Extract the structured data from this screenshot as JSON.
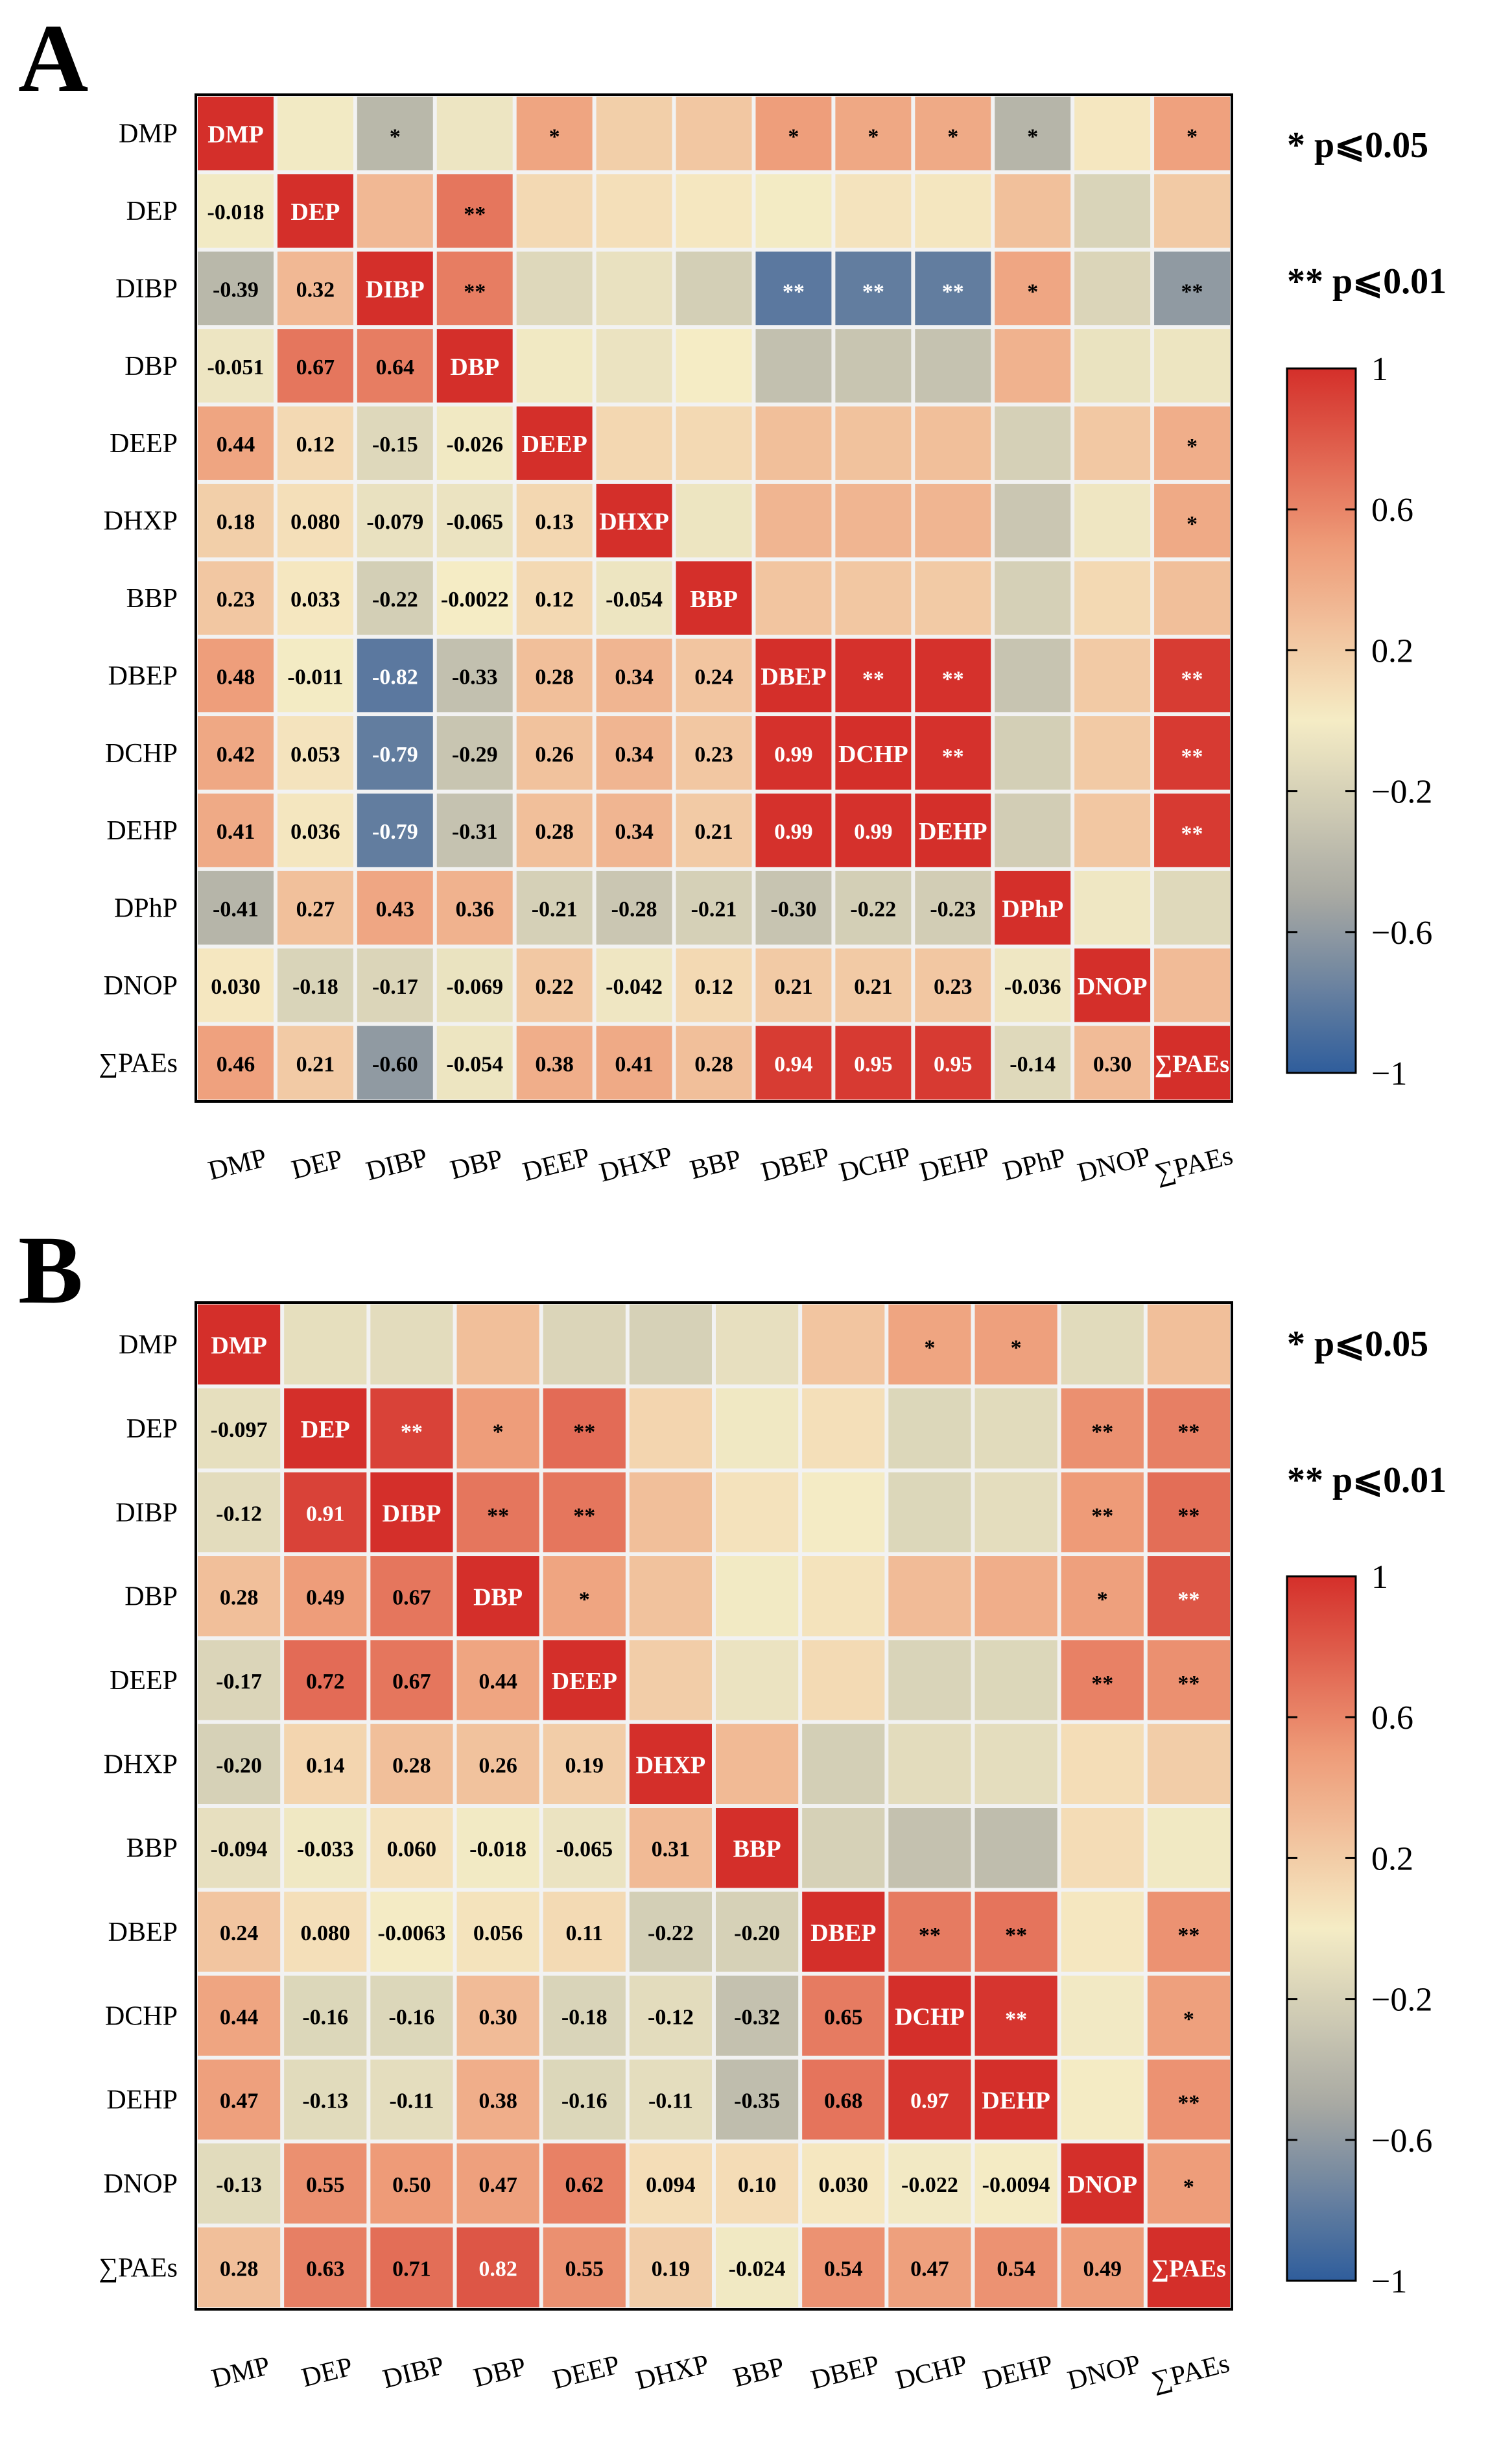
{
  "panels": [
    {
      "letter": "A",
      "chart_data": {
        "type": "heatmap",
        "labels": [
          "DMP",
          "DEP",
          "DIBP",
          "DBP",
          "DEEP",
          "DHXP",
          "BBP",
          "DBEP",
          "DCHP",
          "DEHP",
          "DPhP",
          "DNOP",
          "∑PAEs"
        ],
        "lower": [
          [],
          [
            -0.018
          ],
          [
            -0.39,
            0.32
          ],
          [
            -0.051,
            0.67,
            0.64
          ],
          [
            0.44,
            0.12,
            -0.15,
            -0.026
          ],
          [
            0.18,
            0.08,
            -0.079,
            -0.065,
            0.13
          ],
          [
            0.23,
            0.033,
            -0.22,
            -0.0022,
            0.12,
            -0.054
          ],
          [
            0.48,
            -0.011,
            -0.82,
            -0.33,
            0.28,
            0.34,
            0.24
          ],
          [
            0.42,
            0.053,
            -0.79,
            -0.29,
            0.26,
            0.34,
            0.23,
            0.99
          ],
          [
            0.41,
            0.036,
            -0.79,
            -0.31,
            0.28,
            0.34,
            0.21,
            0.99,
            0.99
          ],
          [
            -0.41,
            0.27,
            0.43,
            0.36,
            -0.21,
            -0.28,
            -0.21,
            -0.3,
            -0.22,
            -0.23
          ],
          [
            0.03,
            -0.18,
            -0.17,
            -0.069,
            0.22,
            -0.042,
            0.12,
            0.21,
            0.21,
            0.23,
            -0.036
          ],
          [
            0.46,
            0.21,
            -0.6,
            -0.054,
            0.38,
            0.41,
            0.28,
            0.94,
            0.95,
            0.95,
            -0.14,
            0.3
          ]
        ],
        "lower_text": [
          [],
          [
            "-0.018"
          ],
          [
            "-0.39",
            "0.32"
          ],
          [
            "-0.051",
            "0.67",
            "0.64"
          ],
          [
            "0.44",
            "0.12",
            "-0.15",
            "-0.026"
          ],
          [
            "0.18",
            "0.080",
            "-0.079",
            "-0.065",
            "0.13"
          ],
          [
            "0.23",
            "0.033",
            "-0.22",
            "-0.0022",
            "0.12",
            "-0.054"
          ],
          [
            "0.48",
            "-0.011",
            "-0.82",
            "-0.33",
            "0.28",
            "0.34",
            "0.24"
          ],
          [
            "0.42",
            "0.053",
            "-0.79",
            "-0.29",
            "0.26",
            "0.34",
            "0.23",
            "0.99"
          ],
          [
            "0.41",
            "0.036",
            "-0.79",
            "-0.31",
            "0.28",
            "0.34",
            "0.21",
            "0.99",
            "0.99"
          ],
          [
            "-0.41",
            "0.27",
            "0.43",
            "0.36",
            "-0.21",
            "-0.28",
            "-0.21",
            "-0.30",
            "-0.22",
            "-0.23"
          ],
          [
            "0.030",
            "-0.18",
            "-0.17",
            "-0.069",
            "0.22",
            "-0.042",
            "0.12",
            "0.21",
            "0.21",
            "0.23",
            "-0.036"
          ],
          [
            "0.46",
            "0.21",
            "-0.60",
            "-0.054",
            "0.38",
            "0.41",
            "0.28",
            "0.94",
            "0.95",
            "0.95",
            "-0.14",
            "0.30"
          ]
        ],
        "significance": [
          [
            "",
            "",
            "*",
            "",
            "*",
            "",
            "",
            "*",
            "*",
            "*",
            "*",
            "",
            "*"
          ],
          [
            "",
            "",
            "",
            "**",
            "",
            "",
            "",
            "",
            "",
            "",
            "",
            "",
            ""
          ],
          [
            "",
            "",
            "",
            "**",
            "",
            "",
            "",
            "**",
            "**",
            "**",
            "*",
            "",
            "**"
          ],
          [
            "",
            "",
            "",
            "",
            "",
            "",
            "",
            "",
            "",
            "",
            "",
            "",
            ""
          ],
          [
            "",
            "",
            "",
            "",
            "",
            "",
            "",
            "",
            "",
            "",
            "",
            "",
            "*"
          ],
          [
            "",
            "",
            "",
            "",
            "",
            "",
            "",
            "",
            "",
            "",
            "",
            "",
            "*"
          ],
          [
            "",
            "",
            "",
            "",
            "",
            "",
            "",
            "",
            "",
            "",
            "",
            "",
            ""
          ],
          [
            "",
            "",
            "",
            "",
            "",
            "",
            "",
            "",
            "**",
            "**",
            "",
            "",
            "**"
          ],
          [
            "",
            "",
            "",
            "",
            "",
            "",
            "",
            "",
            "",
            "**",
            "",
            "",
            "**"
          ],
          [
            "",
            "",
            "",
            "",
            "",
            "",
            "",
            "",
            "",
            "",
            "",
            "",
            "**"
          ],
          [
            "",
            "",
            "",
            "",
            "",
            "",
            "",
            "",
            "",
            "",
            "",
            "",
            ""
          ],
          [
            "",
            "",
            "",
            "",
            "",
            "",
            "",
            "",
            "",
            "",
            "",
            "",
            ""
          ],
          [
            "",
            "",
            "",
            "",
            "",
            "",
            "",
            "",
            "",
            "",
            "",
            "",
            ""
          ]
        ],
        "legend_ticks": [
          "1",
          "0.6",
          "0.2",
          "−0.2",
          "−0.6",
          "−1"
        ],
        "legend_tick_values": [
          1,
          0.6,
          0.2,
          -0.2,
          -0.6,
          -1
        ],
        "sig_labels": [
          "* p⩽0.05",
          "** p⩽0.01"
        ],
        "color_range": [
          -1,
          1
        ]
      }
    },
    {
      "letter": "B",
      "chart_data": {
        "type": "heatmap",
        "labels": [
          "DMP",
          "DEP",
          "DIBP",
          "DBP",
          "DEEP",
          "DHXP",
          "BBP",
          "DBEP",
          "DCHP",
          "DEHP",
          "DNOP",
          "∑PAEs"
        ],
        "lower": [
          [],
          [
            -0.097
          ],
          [
            -0.12,
            0.91
          ],
          [
            0.28,
            0.49,
            0.67
          ],
          [
            -0.17,
            0.72,
            0.67,
            0.44
          ],
          [
            -0.2,
            0.14,
            0.28,
            0.26,
            0.19
          ],
          [
            -0.094,
            -0.033,
            0.06,
            -0.018,
            -0.065,
            0.31
          ],
          [
            0.24,
            0.08,
            -0.0063,
            0.056,
            0.11,
            -0.22,
            -0.2
          ],
          [
            0.44,
            -0.16,
            -0.16,
            0.3,
            -0.18,
            -0.12,
            -0.32,
            0.65
          ],
          [
            0.47,
            -0.13,
            -0.11,
            0.38,
            -0.16,
            -0.11,
            -0.35,
            0.68,
            0.97
          ],
          [
            -0.13,
            0.55,
            0.5,
            0.47,
            0.62,
            0.094,
            0.1,
            0.03,
            -0.022,
            -0.0094
          ],
          [
            0.28,
            0.63,
            0.71,
            0.82,
            0.55,
            0.19,
            -0.024,
            0.54,
            0.47,
            0.54,
            0.49
          ]
        ],
        "lower_text": [
          [],
          [
            "-0.097"
          ],
          [
            "-0.12",
            "0.91"
          ],
          [
            "0.28",
            "0.49",
            "0.67"
          ],
          [
            "-0.17",
            "0.72",
            "0.67",
            "0.44"
          ],
          [
            "-0.20",
            "0.14",
            "0.28",
            "0.26",
            "0.19"
          ],
          [
            "-0.094",
            "-0.033",
            "0.060",
            "-0.018",
            "-0.065",
            "0.31"
          ],
          [
            "0.24",
            "0.080",
            "-0.0063",
            "0.056",
            "0.11",
            "-0.22",
            "-0.20"
          ],
          [
            "0.44",
            "-0.16",
            "-0.16",
            "0.30",
            "-0.18",
            "-0.12",
            "-0.32",
            "0.65"
          ],
          [
            "0.47",
            "-0.13",
            "-0.11",
            "0.38",
            "-0.16",
            "-0.11",
            "-0.35",
            "0.68",
            "0.97"
          ],
          [
            "-0.13",
            "0.55",
            "0.50",
            "0.47",
            "0.62",
            "0.094",
            "0.10",
            "0.030",
            "-0.022",
            "-0.0094"
          ],
          [
            "0.28",
            "0.63",
            "0.71",
            "0.82",
            "0.55",
            "0.19",
            "-0.024",
            "0.54",
            "0.47",
            "0.54",
            "0.49"
          ]
        ],
        "significance": [
          [
            "",
            "",
            "",
            "",
            "",
            "",
            "",
            "",
            "*",
            "*",
            "",
            ""
          ],
          [
            "",
            "",
            "**",
            "*",
            "**",
            "",
            "",
            "",
            "",
            "",
            "**",
            "**"
          ],
          [
            "",
            "",
            "",
            "**",
            "**",
            "",
            "",
            "",
            "",
            "",
            "**",
            "**"
          ],
          [
            "",
            "",
            "",
            "",
            "*",
            "",
            "",
            "",
            "",
            "",
            "*",
            "**"
          ],
          [
            "",
            "",
            "",
            "",
            "",
            "",
            "",
            "",
            "",
            "",
            "**",
            "**"
          ],
          [
            "",
            "",
            "",
            "",
            "",
            "",
            "",
            "",
            "",
            "",
            "",
            ""
          ],
          [
            "",
            "",
            "",
            "",
            "",
            "",
            "",
            "",
            "",
            "",
            "",
            ""
          ],
          [
            "",
            "",
            "",
            "",
            "",
            "",
            "",
            "",
            "**",
            "**",
            "",
            "**"
          ],
          [
            "",
            "",
            "",
            "",
            "",
            "",
            "",
            "",
            "",
            "**",
            "",
            "*"
          ],
          [
            "",
            "",
            "",
            "",
            "",
            "",
            "",
            "",
            "",
            "",
            "",
            "**"
          ],
          [
            "",
            "",
            "",
            "",
            "",
            "",
            "",
            "",
            "",
            "",
            "",
            "*"
          ],
          [
            "",
            "",
            "",
            "",
            "",
            "",
            "",
            "",
            "",
            "",
            "",
            ""
          ]
        ],
        "legend_ticks": [
          "1",
          "0.6",
          "0.2",
          "−0.2",
          "−0.6",
          "−1"
        ],
        "legend_tick_values": [
          1,
          0.6,
          0.2,
          -0.2,
          -0.6,
          -1
        ],
        "sig_labels": [
          "* p⩽0.05",
          "** p⩽0.01"
        ],
        "color_range": [
          -1,
          1
        ]
      }
    }
  ],
  "colors": {
    "high": "#d42f2a",
    "mid_high": "#ee9b78",
    "mid": "#f5ecc5",
    "mid_low": "#a8a9a3",
    "low": "#2f5d9c",
    "grid": "#f2f2f2",
    "frame": "#000000",
    "text": "#000000",
    "text_on_dark": "#ffffff"
  }
}
